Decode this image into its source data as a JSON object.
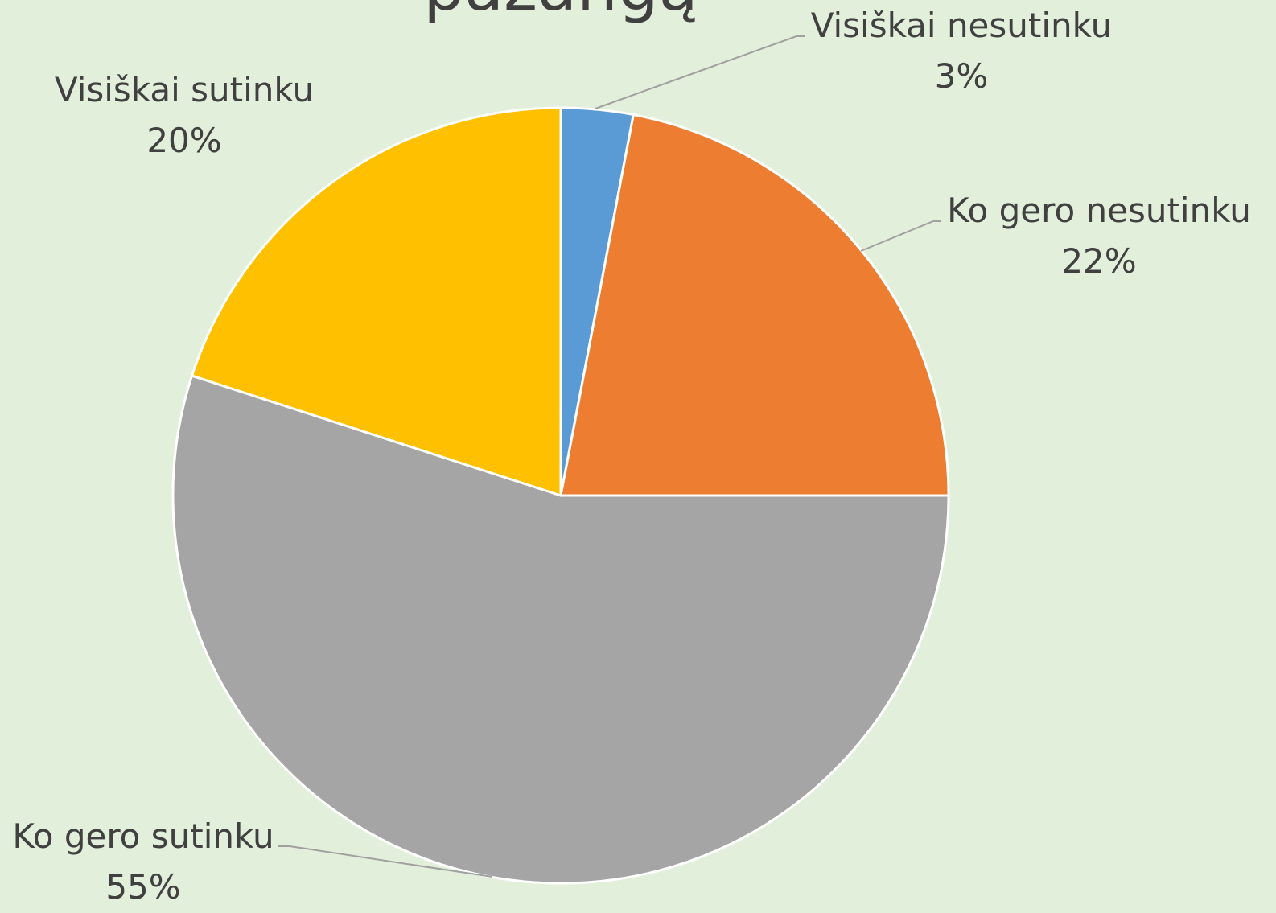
{
  "chart_data": {
    "type": "pie",
    "title": "pažangą",
    "categories": [
      "Visiškai nesutinku",
      "Ko gero nesutinku",
      "Ko gero sutinku",
      "Visiškai sutinku"
    ],
    "values": [
      3,
      22,
      55,
      20
    ],
    "value_labels": [
      "3%",
      "22%",
      "55%",
      "20%"
    ],
    "colors": [
      "#5b9bd5",
      "#ed7d31",
      "#a5a5a5",
      "#ffc000"
    ]
  }
}
